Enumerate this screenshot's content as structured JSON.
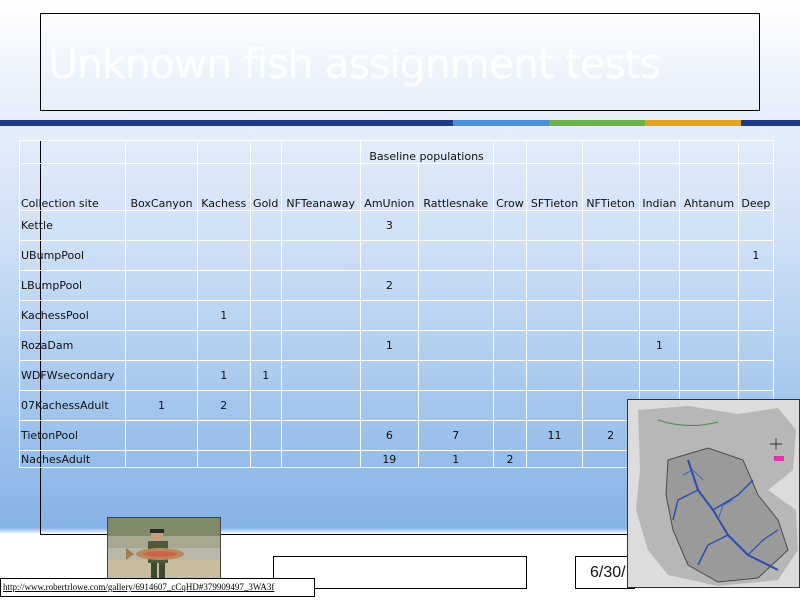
{
  "slide": {
    "title": "Unknown fish assignment tests",
    "date": "6/30/",
    "footer_text": "",
    "url": "http://www.robertrlowe.com/gallery/6914607_cCqHD#379909497_3WA3f",
    "stripe_colors": [
      "#1f3b86",
      "#4b8fd6",
      "#6db24a",
      "#e1a51f",
      "#1f3b86"
    ]
  },
  "table": {
    "band_label": "Baseline populations",
    "site_header": "Collection site",
    "columns": [
      "BoxCanyon",
      "Kachess",
      "Gold",
      "NFTeanaway",
      "AmUnion",
      "Rattlesnake",
      "Crow",
      "SFTieton",
      "NFTieton",
      "Indian",
      "Ahtanum",
      "Deep"
    ],
    "rows": [
      {
        "site": "Kettle",
        "cells": [
          "",
          "",
          "",
          "",
          "3",
          "",
          "",
          "",
          "",
          "",
          "",
          ""
        ]
      },
      {
        "site": "UBumpPool",
        "cells": [
          "",
          "",
          "",
          "",
          "",
          "",
          "",
          "",
          "",
          "",
          "",
          "1"
        ]
      },
      {
        "site": "LBumpPool",
        "cells": [
          "",
          "",
          "",
          "",
          "2",
          "",
          "",
          "",
          "",
          "",
          "",
          ""
        ]
      },
      {
        "site": "KachessPool",
        "cells": [
          "",
          "1",
          "",
          "",
          "",
          "",
          "",
          "",
          "",
          "",
          "",
          ""
        ]
      },
      {
        "site": "RozaDam",
        "cells": [
          "",
          "",
          "",
          "",
          "1",
          "",
          "",
          "",
          "",
          "1",
          "",
          ""
        ]
      },
      {
        "site": "WDFWsecondary",
        "cells": [
          "",
          "1",
          "1",
          "",
          "",
          "",
          "",
          "",
          "",
          "",
          "",
          ""
        ]
      },
      {
        "site": "07KachessAdult",
        "cells": [
          "1",
          "2",
          "",
          "",
          "",
          "",
          "",
          "",
          "",
          "",
          "",
          ""
        ]
      },
      {
        "site": "TietonPool",
        "cells": [
          "",
          "",
          "",
          "",
          "6",
          "7",
          "",
          "11",
          "2",
          "",
          "",
          ""
        ]
      },
      {
        "site": "NachesAdult",
        "cells": [
          "",
          "",
          "",
          "",
          "19",
          "1",
          "2",
          "",
          "",
          "",
          "",
          ""
        ]
      }
    ]
  }
}
